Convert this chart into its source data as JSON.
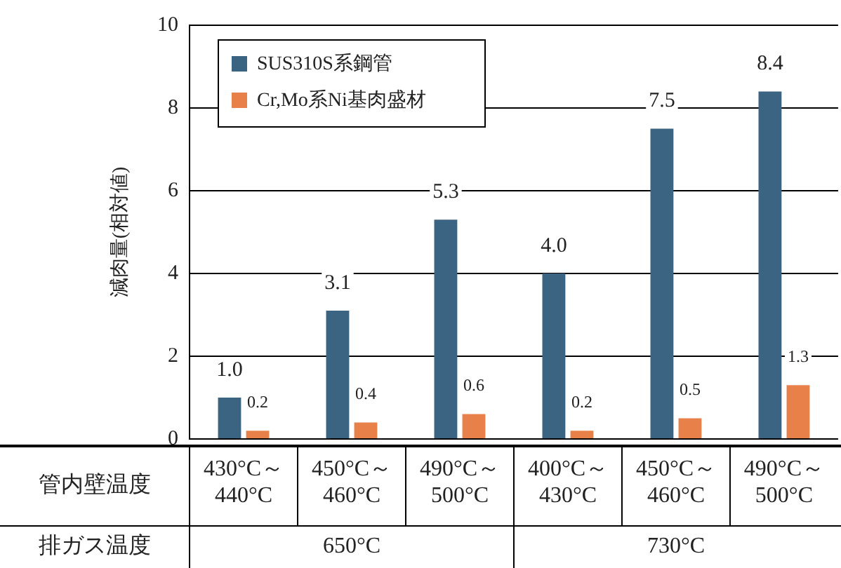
{
  "chart_data": {
    "type": "bar",
    "ylabel": "減肉量(相対値)",
    "xlabel": "管内壁温度",
    "categories": [
      "430°C～440°C",
      "450°C～460°C",
      "490°C～500°C",
      "400°C～430°C",
      "450°C～460°C",
      "490°C～500°C"
    ],
    "series": [
      {
        "name": "SUS310S系鋼管",
        "color": "#3b6482",
        "values": [
          1.0,
          3.1,
          5.3,
          4.0,
          7.5,
          8.4
        ]
      },
      {
        "name": "Cr,Mo系Ni基肉盛材",
        "color": "#e8804a",
        "values": [
          0.2,
          0.4,
          0.6,
          0.2,
          0.5,
          1.3
        ]
      }
    ],
    "value_labels": [
      [
        "1.0",
        "3.1",
        "5.3",
        "4.0",
        "7.5",
        "8.4"
      ],
      [
        "0.2",
        "0.4",
        "0.6",
        "0.2",
        "0.5",
        "1.3"
      ]
    ],
    "annotations": [
      "排ガス温度",
      "650°C",
      "730°C"
    ],
    "ylim": [
      0,
      10
    ],
    "yticks": [
      0,
      2,
      4,
      6,
      8,
      10
    ],
    "grid": "y",
    "legend": "top left"
  }
}
